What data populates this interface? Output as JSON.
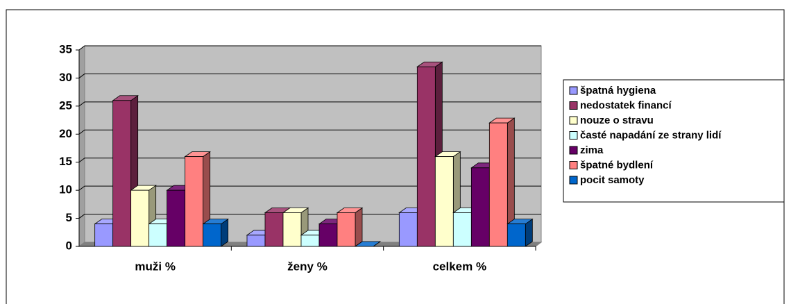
{
  "chart_data": {
    "type": "bar",
    "categories": [
      "muži %",
      "ženy %",
      "celkem %"
    ],
    "series": [
      {
        "name": "špatná hygiena",
        "color": "#9999ff",
        "values": [
          4,
          2,
          6
        ]
      },
      {
        "name": "nedostatek financí",
        "color": "#993366",
        "values": [
          26,
          6,
          32
        ]
      },
      {
        "name": "nouze o stravu",
        "color": "#ffffcc",
        "values": [
          10,
          6,
          16
        ]
      },
      {
        "name": "časté napadání ze strany lidí",
        "color": "#ccffff",
        "values": [
          4,
          2,
          6
        ]
      },
      {
        "name": "zima",
        "color": "#660066",
        "values": [
          10,
          4,
          14
        ]
      },
      {
        "name": "špatné bydlení",
        "color": "#ff8080",
        "values": [
          16,
          6,
          22
        ]
      },
      {
        "name": "pocit samoty",
        "color": "#0066cc",
        "values": [
          4,
          0,
          4
        ]
      }
    ],
    "ylim": [
      0,
      35
    ],
    "yticks": [
      0,
      5,
      10,
      15,
      20,
      25,
      30,
      35
    ],
    "grid": true,
    "legend": "right"
  }
}
